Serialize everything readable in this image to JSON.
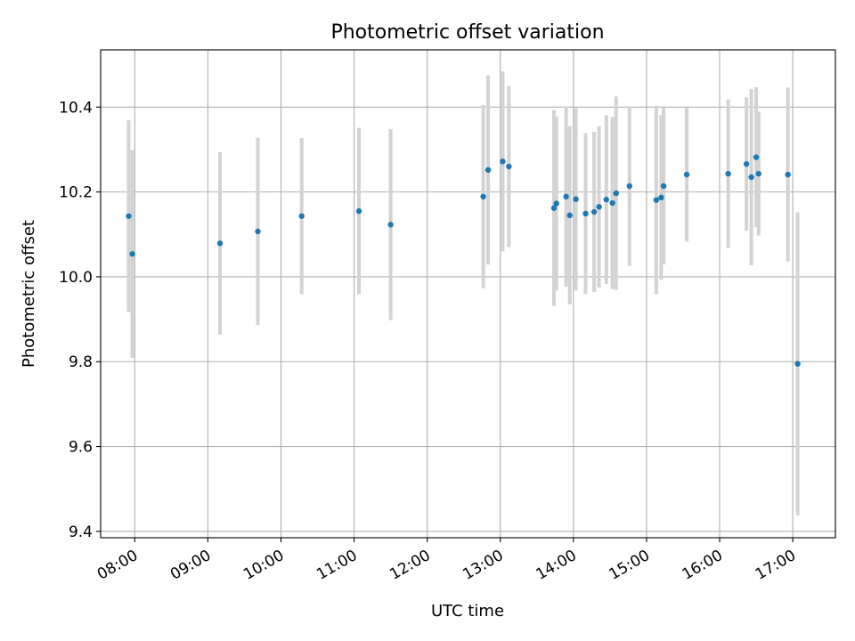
{
  "chart_data": {
    "type": "scatter",
    "title": "Photometric offset variation",
    "xlabel": "UTC time",
    "ylabel": "Photometric offset",
    "xlim": [
      "07:32",
      "17:35"
    ],
    "ylim": [
      9.385,
      10.535
    ],
    "grid": true,
    "x_ticks": [
      "08:00",
      "09:00",
      "10:00",
      "11:00",
      "12:00",
      "13:00",
      "14:00",
      "15:00",
      "16:00",
      "17:00"
    ],
    "y_ticks": [
      9.4,
      9.6,
      9.8,
      10.0,
      10.2,
      10.4
    ],
    "y_tick_labels": [
      "9.4",
      "9.6",
      "9.8",
      "10.0",
      "10.2",
      "10.4"
    ],
    "colors": {
      "point": "#1f77b4",
      "errorbar": "#d3d3d3",
      "grid": "#b0b0b0"
    },
    "series": [
      {
        "points": [
          {
            "t": "07:55",
            "y": 10.143,
            "err": 0.226
          },
          {
            "t": "07:58",
            "y": 10.054,
            "err": 0.245
          },
          {
            "t": "09:10",
            "y": 10.079,
            "err": 0.215
          },
          {
            "t": "09:41",
            "y": 10.107,
            "err": 0.221
          },
          {
            "t": "10:17",
            "y": 10.143,
            "err": 0.184
          },
          {
            "t": "11:04",
            "y": 10.155,
            "err": 0.196
          },
          {
            "t": "11:30",
            "y": 10.123,
            "err": 0.225
          },
          {
            "t": "12:46",
            "y": 10.189,
            "err": 0.216
          },
          {
            "t": "12:50",
            "y": 10.252,
            "err": 0.223
          },
          {
            "t": "13:02",
            "y": 10.272,
            "err": 0.212
          },
          {
            "t": "13:07",
            "y": 10.26,
            "err": 0.19
          },
          {
            "t": "13:44",
            "y": 10.162,
            "err": 0.231
          },
          {
            "t": "13:46",
            "y": 10.173,
            "err": 0.205
          },
          {
            "t": "13:54",
            "y": 10.189,
            "err": 0.212
          },
          {
            "t": "13:57",
            "y": 10.145,
            "err": 0.21
          },
          {
            "t": "14:02",
            "y": 10.183,
            "err": 0.215
          },
          {
            "t": "14:10",
            "y": 10.149,
            "err": 0.19
          },
          {
            "t": "14:17",
            "y": 10.153,
            "err": 0.189
          },
          {
            "t": "14:21",
            "y": 10.165,
            "err": 0.19
          },
          {
            "t": "14:27",
            "y": 10.182,
            "err": 0.199
          },
          {
            "t": "14:32",
            "y": 10.174,
            "err": 0.203
          },
          {
            "t": "14:35",
            "y": 10.197,
            "err": 0.228
          },
          {
            "t": "14:46",
            "y": 10.214,
            "err": 0.188
          },
          {
            "t": "15:08",
            "y": 10.181,
            "err": 0.222
          },
          {
            "t": "15:12",
            "y": 10.187,
            "err": 0.194
          },
          {
            "t": "15:14",
            "y": 10.214,
            "err": 0.185
          },
          {
            "t": "15:33",
            "y": 10.241,
            "err": 0.158
          },
          {
            "t": "16:07",
            "y": 10.243,
            "err": 0.175
          },
          {
            "t": "16:22",
            "y": 10.266,
            "err": 0.157
          },
          {
            "t": "16:26",
            "y": 10.235,
            "err": 0.208
          },
          {
            "t": "16:30",
            "y": 10.282,
            "err": 0.165
          },
          {
            "t": "16:32",
            "y": 10.243,
            "err": 0.146
          },
          {
            "t": "16:56",
            "y": 10.241,
            "err": 0.205
          },
          {
            "t": "17:04",
            "y": 9.795,
            "err": 0.357
          }
        ]
      }
    ]
  }
}
